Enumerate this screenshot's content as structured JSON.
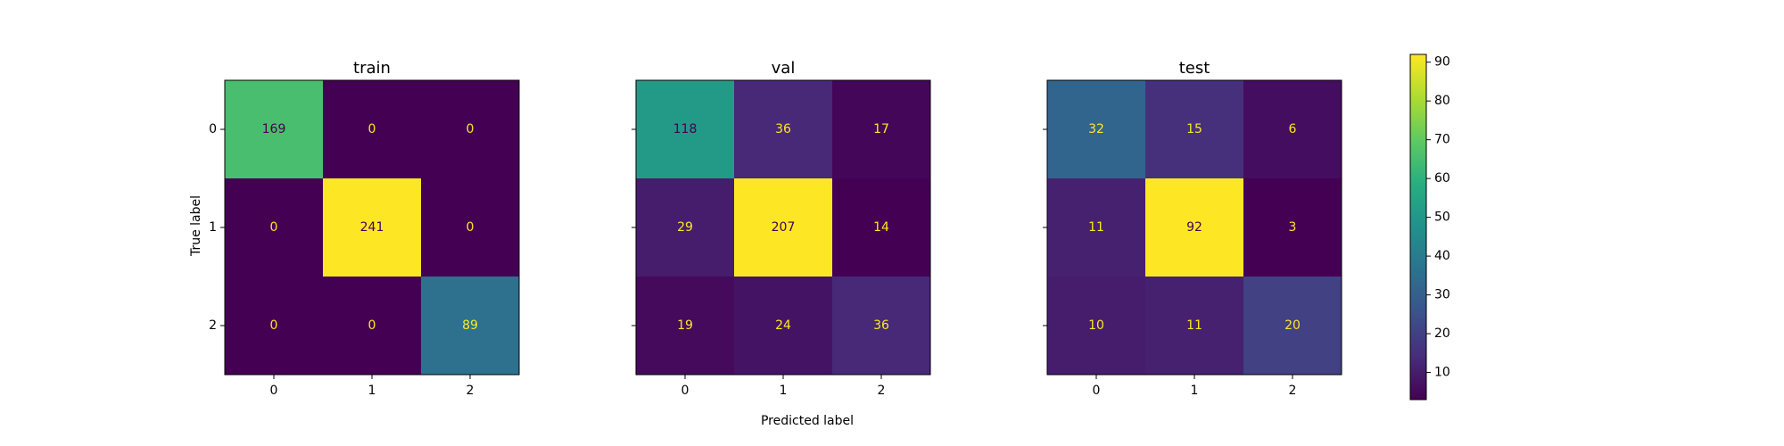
{
  "chart_data": {
    "type": "heatmap",
    "colormap": "viridis",
    "xlabel": "Predicted label",
    "ylabel": "True label",
    "class_labels": [
      "0",
      "1",
      "2"
    ],
    "panels": [
      {
        "title": "train",
        "matrix": [
          [
            169,
            0,
            0
          ],
          [
            0,
            241,
            0
          ],
          [
            0,
            0,
            89
          ]
        ],
        "vmin": 0,
        "vmax": 241
      },
      {
        "title": "val",
        "matrix": [
          [
            118,
            36,
            17
          ],
          [
            29,
            207,
            14
          ],
          [
            19,
            24,
            36
          ]
        ],
        "vmin": 14,
        "vmax": 207
      },
      {
        "title": "test",
        "matrix": [
          [
            32,
            15,
            6
          ],
          [
            11,
            92,
            3
          ],
          [
            10,
            11,
            20
          ]
        ],
        "vmin": 3,
        "vmax": 92
      }
    ],
    "colorbar": {
      "vmin": 3,
      "vmax": 92,
      "ticks": [
        10,
        20,
        30,
        40,
        50,
        60,
        70,
        80,
        90
      ]
    },
    "text_colors": {
      "on_dark": "#fde725",
      "on_light": "#440154"
    }
  }
}
